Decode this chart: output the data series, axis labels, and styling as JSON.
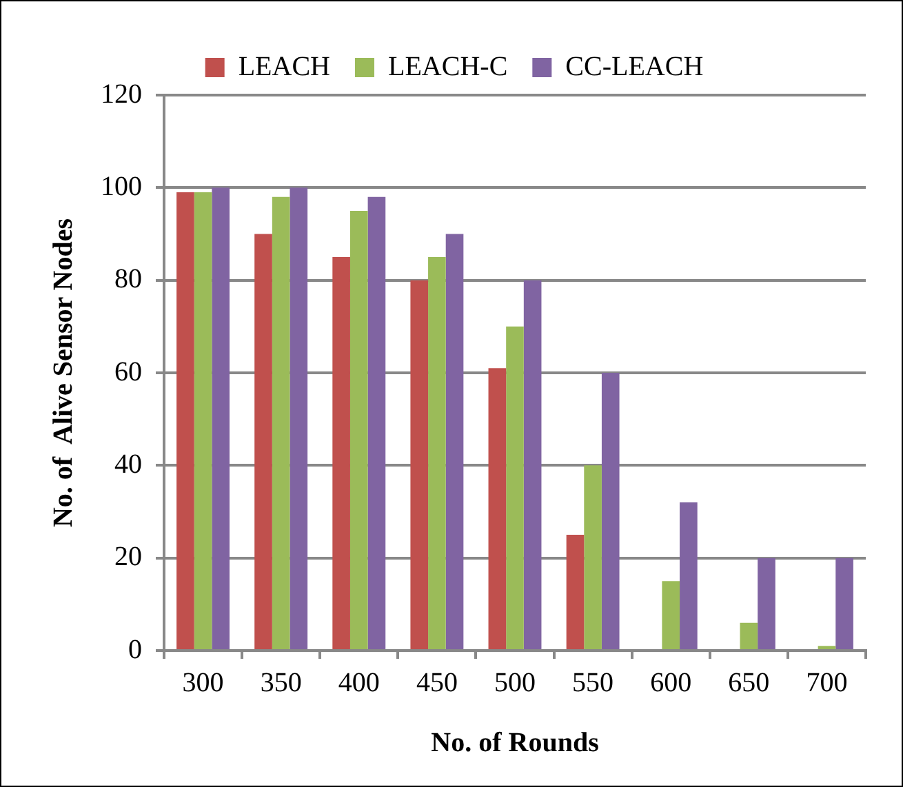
{
  "chart_data": {
    "type": "bar",
    "xlabel": "No. of Rounds",
    "ylabel": "No. of  Alive Sensor Nodes",
    "categories": [
      "300",
      "350",
      "400",
      "450",
      "500",
      "550",
      "600",
      "650",
      "700"
    ],
    "series": [
      {
        "name": "LEACH",
        "color": "#c0504d",
        "values": [
          99,
          90,
          85,
          80,
          61,
          25,
          0,
          0,
          0
        ]
      },
      {
        "name": "LEACH-C",
        "color": "#9bbb59",
        "values": [
          99,
          98,
          95,
          85,
          70,
          40,
          15,
          6,
          1
        ]
      },
      {
        "name": "CC-LEACH",
        "color": "#8064a2",
        "values": [
          100,
          100,
          98,
          90,
          80,
          60,
          32,
          20,
          20
        ]
      }
    ],
    "ylim": [
      0,
      120
    ],
    "yticks": [
      0,
      20,
      40,
      60,
      80,
      100,
      120
    ],
    "grid": "y",
    "legend": "top"
  }
}
